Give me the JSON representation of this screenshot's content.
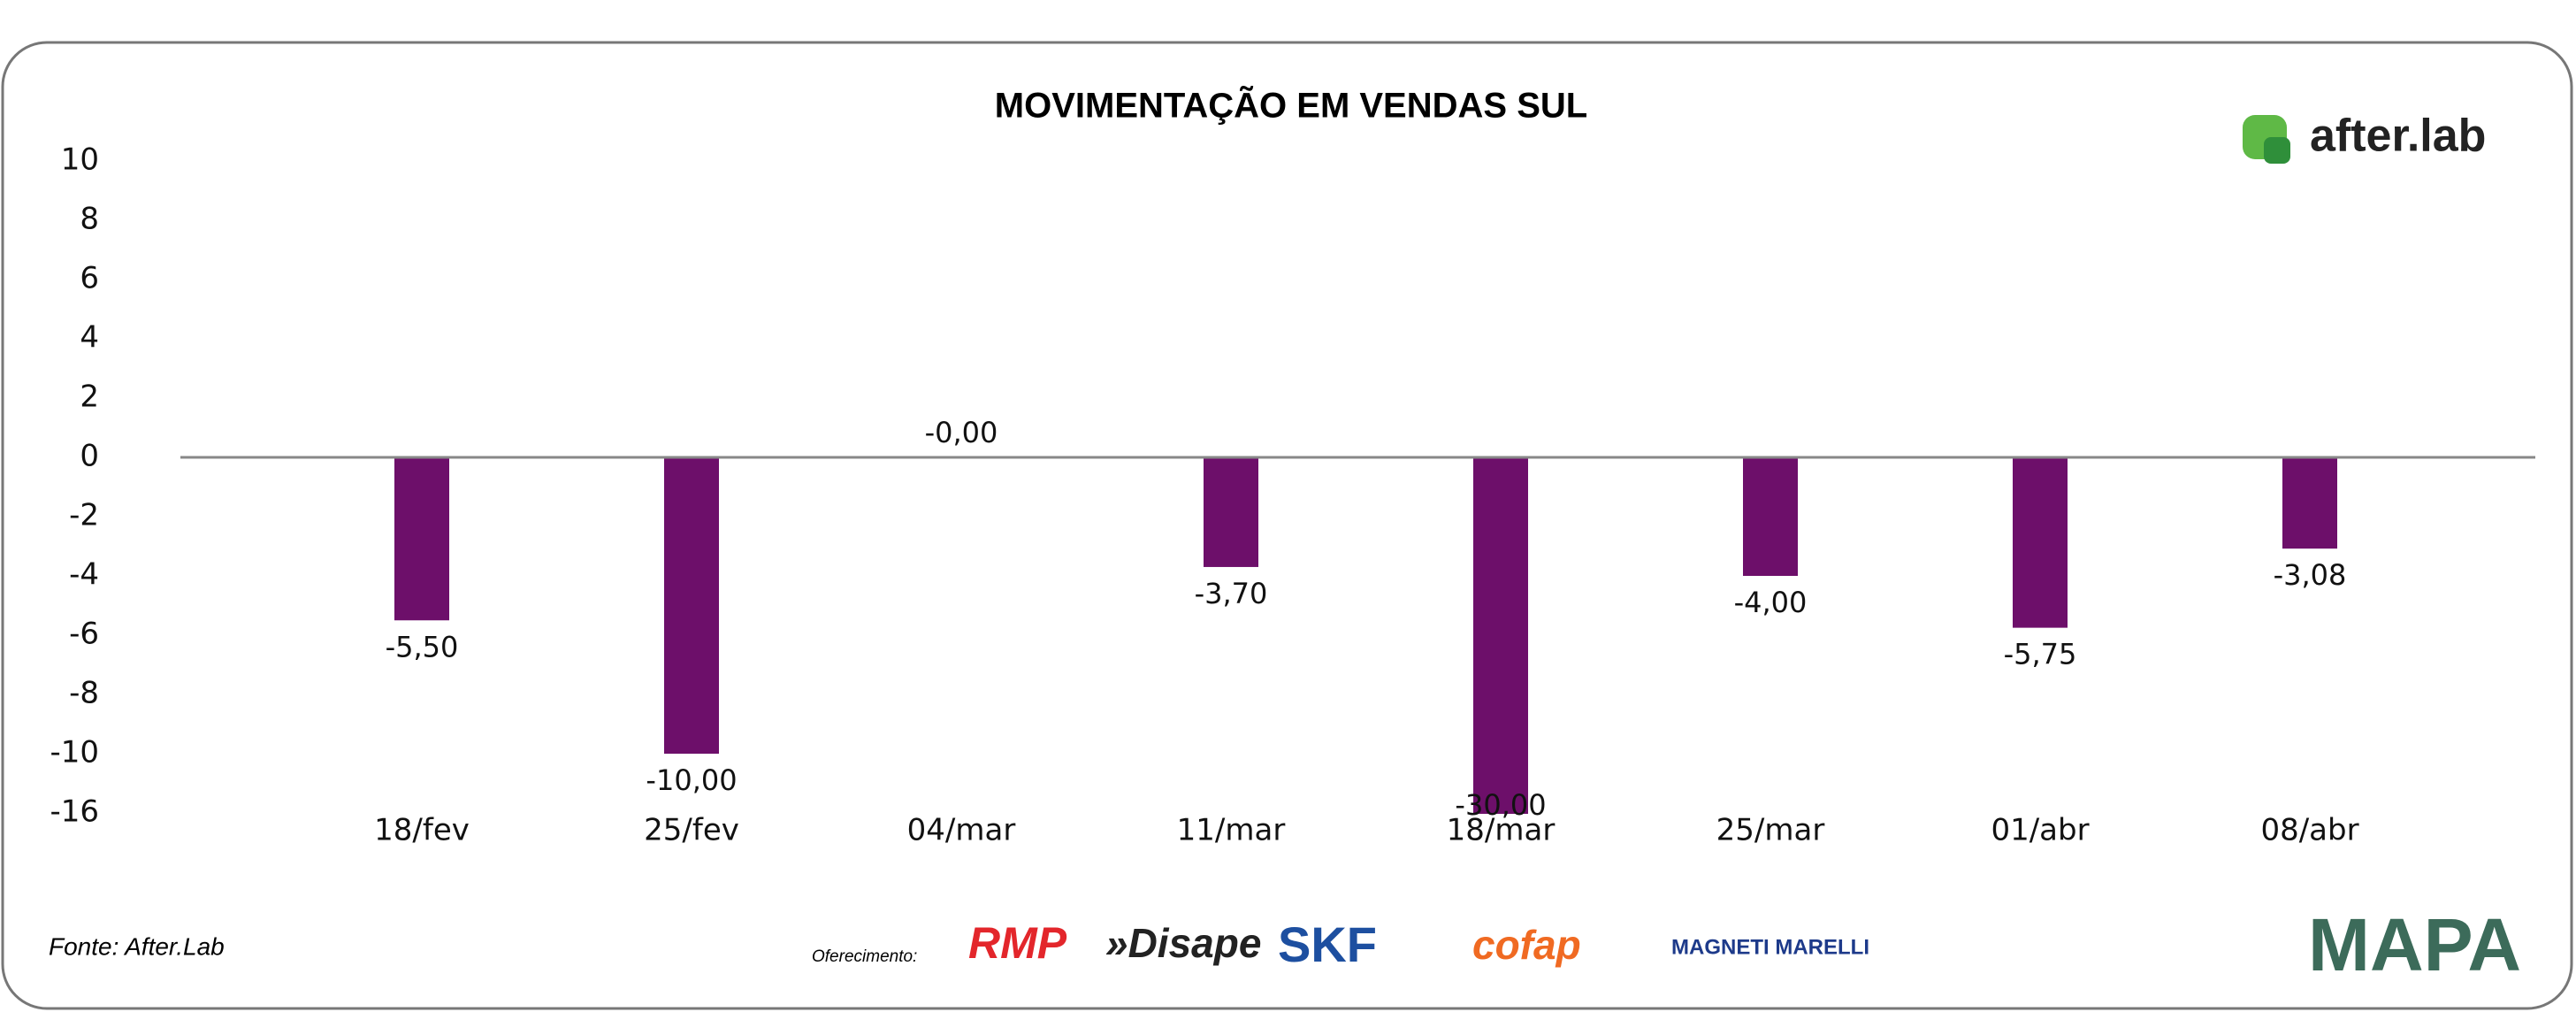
{
  "chart_data": {
    "type": "bar",
    "title": "MOVIMENTAÇÃO EM VENDAS SUL",
    "categories": [
      "18/fev",
      "25/fev",
      "04/mar",
      "11/mar",
      "18/mar",
      "25/mar",
      "01/abr",
      "08/abr"
    ],
    "values": [
      -5.5,
      -10,
      0,
      -3.7,
      -30,
      -4,
      -5.75,
      -3.08
    ],
    "value_labels": [
      "-5,50",
      "-10,00",
      "-0,00",
      "-3,70",
      "-30,00",
      "-4,00",
      "-5,75",
      "-3,08"
    ],
    "color": "#6d0f6a",
    "ylim": [
      -16,
      10
    ],
    "yticks": [
      10,
      8,
      6,
      4,
      2,
      0,
      -2,
      -4,
      -6,
      -8,
      -10,
      -16
    ],
    "grid": false
  },
  "brand": "after.lab",
  "source": "Fonte: After.Lab",
  "sponsor_label": "Oferecimento:",
  "sponsors": [
    "RMP",
    "»Disape",
    "SKF",
    "cofap",
    "MAGNETI MARELLI"
  ],
  "footer_logo": "MAPA"
}
